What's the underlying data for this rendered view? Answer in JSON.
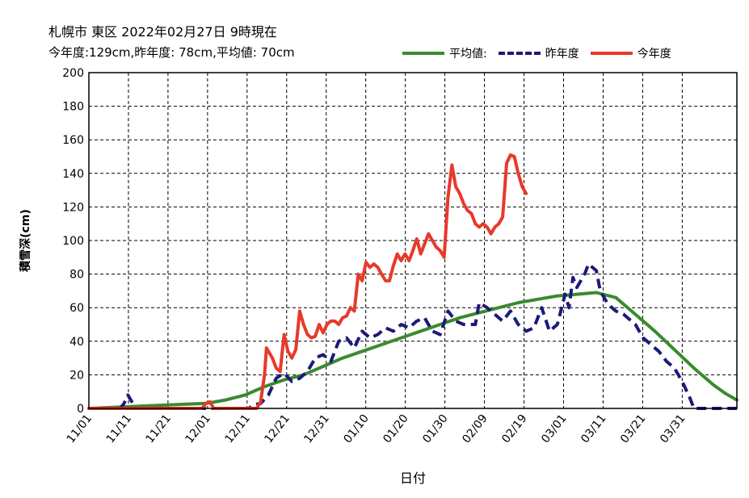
{
  "header": {
    "title": "札幌市  東区  2022年02月27日 9時現在",
    "summary": "今年度:129cm,昨年度: 78cm,平均値: 70cm"
  },
  "chart_data": {
    "type": "line",
    "xlabel": "日付",
    "ylabel": "積雪深(cm)",
    "ylim": [
      0,
      200
    ],
    "yticks": [
      0,
      20,
      40,
      60,
      80,
      100,
      120,
      140,
      160,
      180,
      200
    ],
    "xtick_labels": [
      "11/01",
      "11/11",
      "11/21",
      "12/01",
      "12/11",
      "12/21",
      "12/31",
      "01/10",
      "01/20",
      "01/30",
      "02/09",
      "02/19",
      "03/01",
      "03/11",
      "03/21",
      "03/31"
    ],
    "x_day_range": [
      0,
      152
    ],
    "grid": true,
    "legend_position": "top-right",
    "series": [
      {
        "name": "平均値:",
        "color": "#3a8a2e",
        "style": "solid",
        "points": [
          [
            0,
            0
          ],
          [
            10,
            1
          ],
          [
            20,
            2
          ],
          [
            30,
            3
          ],
          [
            35,
            5
          ],
          [
            40,
            8
          ],
          [
            45,
            13
          ],
          [
            50,
            17
          ],
          [
            55,
            20
          ],
          [
            60,
            25
          ],
          [
            65,
            30
          ],
          [
            70,
            34
          ],
          [
            75,
            38
          ],
          [
            80,
            42
          ],
          [
            85,
            46
          ],
          [
            90,
            50
          ],
          [
            95,
            54
          ],
          [
            100,
            57
          ],
          [
            105,
            60
          ],
          [
            110,
            63
          ],
          [
            115,
            65
          ],
          [
            120,
            67
          ],
          [
            125,
            68
          ],
          [
            130,
            69
          ],
          [
            135,
            66
          ],
          [
            140,
            56
          ],
          [
            145,
            46
          ],
          [
            150,
            35
          ],
          [
            155,
            24
          ],
          [
            160,
            14
          ],
          [
            163,
            9
          ],
          [
            166,
            5
          ]
        ]
      },
      {
        "name": "昨年度",
        "color": "#1c1a7a",
        "style": "dashed",
        "points": [
          [
            0,
            0
          ],
          [
            8,
            0
          ],
          [
            9,
            3
          ],
          [
            10,
            8
          ],
          [
            11,
            4
          ],
          [
            12,
            0
          ],
          [
            41,
            0
          ],
          [
            42,
            2
          ],
          [
            44,
            3
          ],
          [
            46,
            8
          ],
          [
            48,
            18
          ],
          [
            50,
            21
          ],
          [
            52,
            16
          ],
          [
            54,
            18
          ],
          [
            56,
            22
          ],
          [
            58,
            30
          ],
          [
            60,
            32
          ],
          [
            62,
            28
          ],
          [
            64,
            40
          ],
          [
            66,
            42
          ],
          [
            68,
            36
          ],
          [
            70,
            46
          ],
          [
            72,
            42
          ],
          [
            74,
            44
          ],
          [
            76,
            48
          ],
          [
            78,
            46
          ],
          [
            80,
            50
          ],
          [
            82,
            48
          ],
          [
            84,
            52
          ],
          [
            86,
            54
          ],
          [
            88,
            46
          ],
          [
            90,
            44
          ],
          [
            92,
            58
          ],
          [
            94,
            52
          ],
          [
            96,
            50
          ],
          [
            99,
            50
          ],
          [
            100,
            63
          ],
          [
            102,
            60
          ],
          [
            104,
            56
          ],
          [
            106,
            52
          ],
          [
            108,
            58
          ],
          [
            110,
            50
          ],
          [
            112,
            46
          ],
          [
            114,
            48
          ],
          [
            116,
            60
          ],
          [
            118,
            46
          ],
          [
            120,
            50
          ],
          [
            122,
            68
          ],
          [
            123,
            60
          ],
          [
            124,
            78
          ],
          [
            125,
            72
          ],
          [
            127,
            80
          ],
          [
            128,
            86
          ],
          [
            130,
            82
          ],
          [
            131,
            70
          ],
          [
            133,
            62
          ],
          [
            135,
            58
          ],
          [
            137,
            56
          ],
          [
            140,
            50
          ],
          [
            142,
            42
          ],
          [
            144,
            38
          ],
          [
            146,
            34
          ],
          [
            148,
            28
          ],
          [
            150,
            24
          ],
          [
            152,
            16
          ],
          [
            154,
            6
          ],
          [
            155,
            0
          ],
          [
            166,
            0
          ]
        ]
      },
      {
        "name": "今年度",
        "color": "#e8392b",
        "style": "solid",
        "points": [
          [
            0,
            0
          ],
          [
            29,
            0
          ],
          [
            30,
            3
          ],
          [
            31,
            4
          ],
          [
            32,
            0
          ],
          [
            43,
            0
          ],
          [
            44,
            4
          ],
          [
            45,
            20
          ],
          [
            45.5,
            36
          ],
          [
            47,
            30
          ],
          [
            48,
            24
          ],
          [
            49,
            22
          ],
          [
            50,
            44
          ],
          [
            51,
            34
          ],
          [
            52,
            30
          ],
          [
            53,
            35
          ],
          [
            54,
            58
          ],
          [
            55,
            50
          ],
          [
            56,
            44
          ],
          [
            57,
            42
          ],
          [
            58,
            43
          ],
          [
            59,
            50
          ],
          [
            60,
            45
          ],
          [
            61,
            50
          ],
          [
            62,
            52
          ],
          [
            63,
            52
          ],
          [
            64,
            50
          ],
          [
            65,
            54
          ],
          [
            66,
            55
          ],
          [
            67,
            60
          ],
          [
            68,
            58
          ],
          [
            69,
            80
          ],
          [
            70,
            76
          ],
          [
            71,
            87
          ],
          [
            72,
            84
          ],
          [
            73,
            86
          ],
          [
            74,
            84
          ],
          [
            75,
            80
          ],
          [
            76,
            76
          ],
          [
            77,
            76
          ],
          [
            78,
            85
          ],
          [
            79,
            92
          ],
          [
            80,
            88
          ],
          [
            81,
            92
          ],
          [
            82,
            88
          ],
          [
            83,
            94
          ],
          [
            84,
            101
          ],
          [
            85,
            92
          ],
          [
            86,
            98
          ],
          [
            87,
            104
          ],
          [
            88,
            100
          ],
          [
            89,
            96
          ],
          [
            90,
            94
          ],
          [
            91,
            90
          ],
          [
            92,
            126
          ],
          [
            93,
            145
          ],
          [
            94,
            132
          ],
          [
            95,
            128
          ],
          [
            96,
            122
          ],
          [
            97,
            118
          ],
          [
            98,
            116
          ],
          [
            99,
            110
          ],
          [
            100,
            108
          ],
          [
            101,
            110
          ],
          [
            102,
            108
          ],
          [
            103,
            104
          ],
          [
            104,
            108
          ],
          [
            105,
            110
          ],
          [
            106,
            114
          ],
          [
            107,
            146
          ],
          [
            108,
            151
          ],
          [
            109,
            150
          ],
          [
            110,
            140
          ],
          [
            111,
            132
          ],
          [
            112,
            128
          ]
        ]
      }
    ]
  }
}
